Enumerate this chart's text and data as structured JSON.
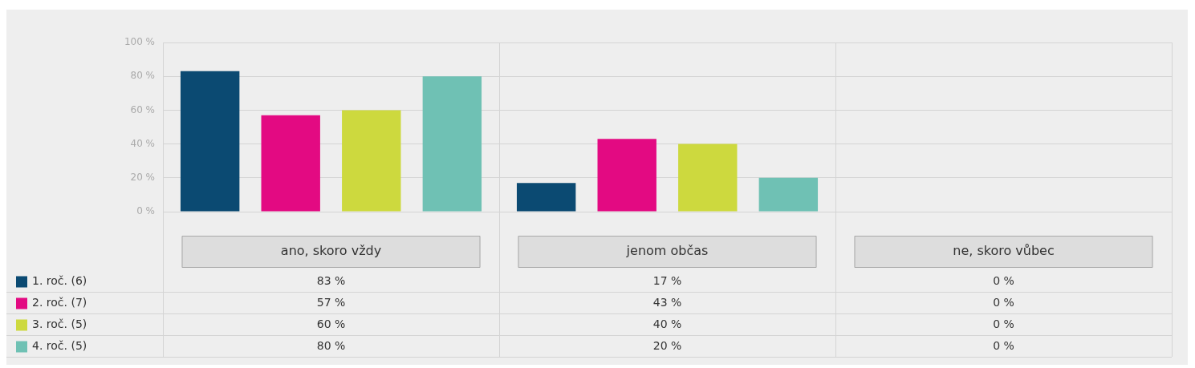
{
  "chart_data": {
    "type": "bar",
    "categories": [
      "ano, skoro vždy",
      "jenom občas",
      "ne, skoro vůbec"
    ],
    "series": [
      {
        "name": "1. roč. (6)",
        "color": "#0b4a72",
        "values": [
          83,
          17,
          0
        ],
        "value_labels": [
          "83 %",
          "17 %",
          "0 %"
        ]
      },
      {
        "name": "2. roč. (7)",
        "color": "#e30a82",
        "values": [
          57,
          43,
          0
        ],
        "value_labels": [
          "57 %",
          "43 %",
          "0 %"
        ]
      },
      {
        "name": "3. roč. (5)",
        "color": "#cdd93e",
        "values": [
          60,
          40,
          0
        ],
        "value_labels": [
          "60 %",
          "40 %",
          "0 %"
        ]
      },
      {
        "name": "4. roč. (5)",
        "color": "#6fc1b4",
        "values": [
          80,
          20,
          0
        ],
        "value_labels": [
          "80 %",
          "20 %",
          "0 %"
        ]
      }
    ],
    "ylim": [
      0,
      100
    ],
    "yticks": [
      {
        "value": 0,
        "label": "0 %"
      },
      {
        "value": 20,
        "label": "20 %"
      },
      {
        "value": 40,
        "label": "40 %"
      },
      {
        "value": 60,
        "label": "60 %"
      },
      {
        "value": 80,
        "label": "80 %"
      },
      {
        "value": 100,
        "label": "100 %"
      }
    ],
    "grid": true,
    "legend": "bottom left"
  }
}
